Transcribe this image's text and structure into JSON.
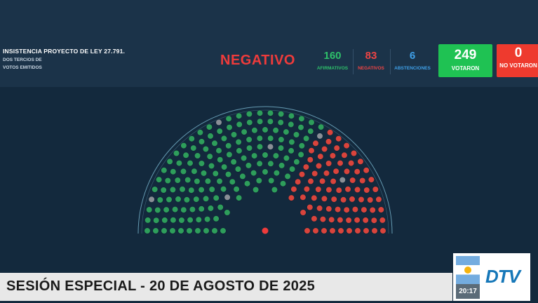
{
  "header": {
    "title": "INSISTENCIA PROYECTO DE LEY 27.791.",
    "subtitle": "DOS TERCIOS DE VOTOS EMITIDOS",
    "result": "NEGATIVO"
  },
  "counts": {
    "afirmativos": {
      "value": "160",
      "label": "AFIRMATIVOS"
    },
    "negativos": {
      "value": "83",
      "label": "NEGATIVOS"
    },
    "abstenciones": {
      "value": "6",
      "label": "ABSTENCIONES"
    },
    "votaron": {
      "value": "249",
      "label": "VOTARON"
    },
    "no_votaron": {
      "value": "0",
      "label": "NO VOTARON"
    }
  },
  "colors": {
    "afirmativo": "#2e9e5b",
    "negativo": "#d9443c",
    "abstencion": "#8a8f96",
    "presidente": "#ee3b3b",
    "ring": "#7ab8cf"
  },
  "chamber": {
    "presidente_seat": "presidente"
  },
  "lower_third": {
    "text": "SESIÓN ESPECIAL - 20 DE AGOSTO DE 2025"
  },
  "channel": {
    "time": "20:17",
    "logo_text": "DTV",
    "flag_icon": "argentina-flag-icon"
  }
}
